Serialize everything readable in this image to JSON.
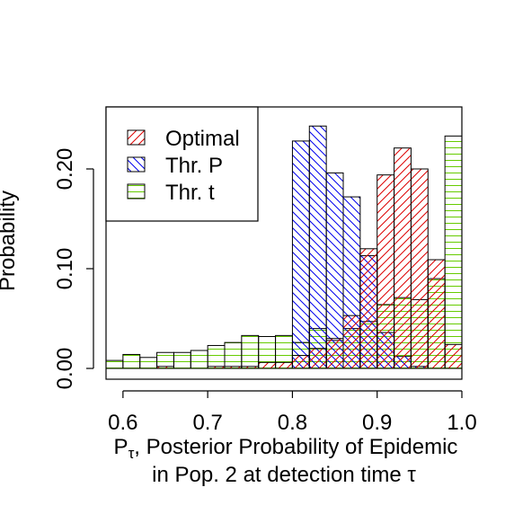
{
  "chart_data": {
    "type": "bar",
    "title": "",
    "xlabel_main": "P",
    "xlabel_sub": "τ",
    "xlabel_rest": ", Posterior Probability of Epidemic",
    "xlabel_line2": "in Pop. 2  at detection time τ",
    "ylabel": "Probability",
    "xlim": [
      0.58,
      1.0
    ],
    "ylim": [
      0.0,
      0.245
    ],
    "x_ticks": [
      0.6,
      0.7,
      0.8,
      0.9,
      1.0
    ],
    "x_tick_labels": [
      "0.6",
      "0.7",
      "0.8",
      "0.9",
      "1.0"
    ],
    "y_ticks": [
      0.0,
      0.1,
      0.2
    ],
    "y_tick_labels": [
      "0.00",
      "0.10",
      "0.20"
    ],
    "bin_width": 0.02,
    "grid": false,
    "legend_position": "top-left",
    "series": [
      {
        "name": "Thr. t",
        "color": "#66cc00",
        "hatch": "horizontal",
        "bins": [
          {
            "x0": 0.58,
            "x1": 0.6,
            "y": 0.008
          },
          {
            "x0": 0.6,
            "x1": 0.62,
            "y": 0.014
          },
          {
            "x0": 0.62,
            "x1": 0.64,
            "y": 0.011
          },
          {
            "x0": 0.64,
            "x1": 0.66,
            "y": 0.016
          },
          {
            "x0": 0.66,
            "x1": 0.68,
            "y": 0.016
          },
          {
            "x0": 0.68,
            "x1": 0.7,
            "y": 0.018
          },
          {
            "x0": 0.7,
            "x1": 0.72,
            "y": 0.023
          },
          {
            "x0": 0.72,
            "x1": 0.74,
            "y": 0.026
          },
          {
            "x0": 0.74,
            "x1": 0.76,
            "y": 0.033
          },
          {
            "x0": 0.76,
            "x1": 0.78,
            "y": 0.032
          },
          {
            "x0": 0.78,
            "x1": 0.8,
            "y": 0.033
          },
          {
            "x0": 0.8,
            "x1": 0.82,
            "y": 0.026
          },
          {
            "x0": 0.82,
            "x1": 0.84,
            "y": 0.04
          },
          {
            "x0": 0.84,
            "x1": 0.86,
            "y": 0.028
          },
          {
            "x0": 0.86,
            "x1": 0.88,
            "y": 0.04
          },
          {
            "x0": 0.88,
            "x1": 0.9,
            "y": 0.047
          },
          {
            "x0": 0.9,
            "x1": 0.92,
            "y": 0.064
          },
          {
            "x0": 0.92,
            "x1": 0.94,
            "y": 0.071
          },
          {
            "x0": 0.94,
            "x1": 0.96,
            "y": 0.069
          },
          {
            "x0": 0.96,
            "x1": 0.98,
            "y": 0.09
          },
          {
            "x0": 0.98,
            "x1": 1.0,
            "y": 0.233
          }
        ]
      },
      {
        "name": "Thr. P",
        "color": "#0000ee",
        "hatch": "backslash",
        "bins": [
          {
            "x0": 0.8,
            "x1": 0.82,
            "y": 0.228
          },
          {
            "x0": 0.82,
            "x1": 0.84,
            "y": 0.243
          },
          {
            "x0": 0.84,
            "x1": 0.86,
            "y": 0.196
          },
          {
            "x0": 0.86,
            "x1": 0.88,
            "y": 0.172
          },
          {
            "x0": 0.88,
            "x1": 0.9,
            "y": 0.113
          },
          {
            "x0": 0.9,
            "x1": 0.92,
            "y": 0.036
          },
          {
            "x0": 0.92,
            "x1": 0.94,
            "y": 0.012
          },
          {
            "x0": 0.94,
            "x1": 0.96,
            "y": 0.002
          }
        ]
      },
      {
        "name": "Optimal",
        "color": "#dd0000",
        "hatch": "slash",
        "bins": [
          {
            "x0": 0.64,
            "x1": 0.66,
            "y": 0.002
          },
          {
            "x0": 0.7,
            "x1": 0.72,
            "y": 0.002
          },
          {
            "x0": 0.72,
            "x1": 0.74,
            "y": 0.002
          },
          {
            "x0": 0.74,
            "x1": 0.76,
            "y": 0.002
          },
          {
            "x0": 0.76,
            "x1": 0.78,
            "y": 0.006
          },
          {
            "x0": 0.78,
            "x1": 0.8,
            "y": 0.006
          },
          {
            "x0": 0.8,
            "x1": 0.82,
            "y": 0.013
          },
          {
            "x0": 0.82,
            "x1": 0.84,
            "y": 0.02
          },
          {
            "x0": 0.84,
            "x1": 0.86,
            "y": 0.03
          },
          {
            "x0": 0.86,
            "x1": 0.88,
            "y": 0.053
          },
          {
            "x0": 0.88,
            "x1": 0.9,
            "y": 0.12
          },
          {
            "x0": 0.9,
            "x1": 0.92,
            "y": 0.194
          },
          {
            "x0": 0.92,
            "x1": 0.94,
            "y": 0.221
          },
          {
            "x0": 0.94,
            "x1": 0.96,
            "y": 0.2
          },
          {
            "x0": 0.96,
            "x1": 0.98,
            "y": 0.109
          },
          {
            "x0": 0.98,
            "x1": 1.0,
            "y": 0.024
          }
        ]
      }
    ],
    "legend": [
      {
        "label": "Optimal",
        "color": "#dd0000",
        "hatch": "slash"
      },
      {
        "label": "Thr. P",
        "color": "#0000ee",
        "hatch": "backslash"
      },
      {
        "label": "Thr. t",
        "color": "#66cc00",
        "hatch": "horizontal"
      }
    ]
  }
}
